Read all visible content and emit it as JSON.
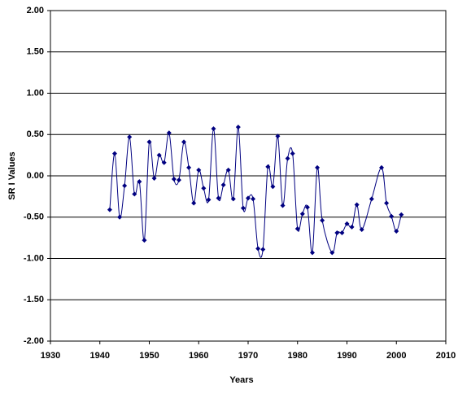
{
  "chart_data": {
    "type": "line",
    "x_label": "Years",
    "y_label": "SR I Values",
    "x": [
      1942,
      1943,
      1944,
      1945,
      1946,
      1947,
      1948,
      1949,
      1950,
      1951,
      1952,
      1953,
      1954,
      1955,
      1956,
      1957,
      1958,
      1959,
      1960,
      1961,
      1962,
      1963,
      1964,
      1965,
      1966,
      1967,
      1968,
      1969,
      1970,
      1971,
      1972,
      1973,
      1974,
      1975,
      1976,
      1977,
      1978,
      1979,
      1980,
      1981,
      1982,
      1983,
      1984,
      1985,
      1987,
      1988,
      1989,
      1990,
      1991,
      1992,
      1993,
      1995,
      1997,
      1998,
      1999,
      2000,
      2001
    ],
    "series": [
      {
        "name": "SRI",
        "color": "#000080",
        "values": [
          -0.41,
          0.27,
          -0.5,
          -0.12,
          0.47,
          -0.22,
          -0.07,
          -0.78,
          0.41,
          -0.03,
          0.25,
          0.16,
          0.52,
          -0.04,
          -0.05,
          0.41,
          0.1,
          -0.33,
          0.07,
          -0.15,
          -0.29,
          0.57,
          -0.27,
          -0.11,
          0.07,
          -0.28,
          0.59,
          -0.39,
          -0.27,
          -0.28,
          -0.88,
          -0.89,
          0.11,
          -0.13,
          0.48,
          -0.36,
          0.21,
          0.27,
          -0.64,
          -0.46,
          -0.38,
          -0.93,
          0.1,
          -0.54,
          -0.93,
          -0.69,
          -0.69,
          -0.58,
          -0.62,
          -0.35,
          -0.65,
          -0.28,
          0.1,
          -0.33,
          -0.49,
          -0.67,
          -0.47
        ]
      }
    ],
    "xlim": [
      1930,
      2010
    ],
    "xticks": [
      1930,
      1940,
      1950,
      1960,
      1970,
      1980,
      1990,
      2000,
      2010
    ],
    "ylim": [
      -2,
      2
    ],
    "yticks": [
      {
        "value": -2,
        "label": "-2.00"
      },
      {
        "value": -1.5,
        "label": "-1.50"
      },
      {
        "value": -1,
        "label": "-1.00"
      },
      {
        "value": -0.5,
        "label": "-0.50"
      },
      {
        "value": 0,
        "label": "0.00"
      },
      {
        "value": 0.5,
        "label": "0.50"
      },
      {
        "value": 1,
        "label": "1.00"
      },
      {
        "value": 1.5,
        "label": "1.50"
      },
      {
        "value": 2,
        "label": "2.00"
      }
    ],
    "grid": true
  }
}
